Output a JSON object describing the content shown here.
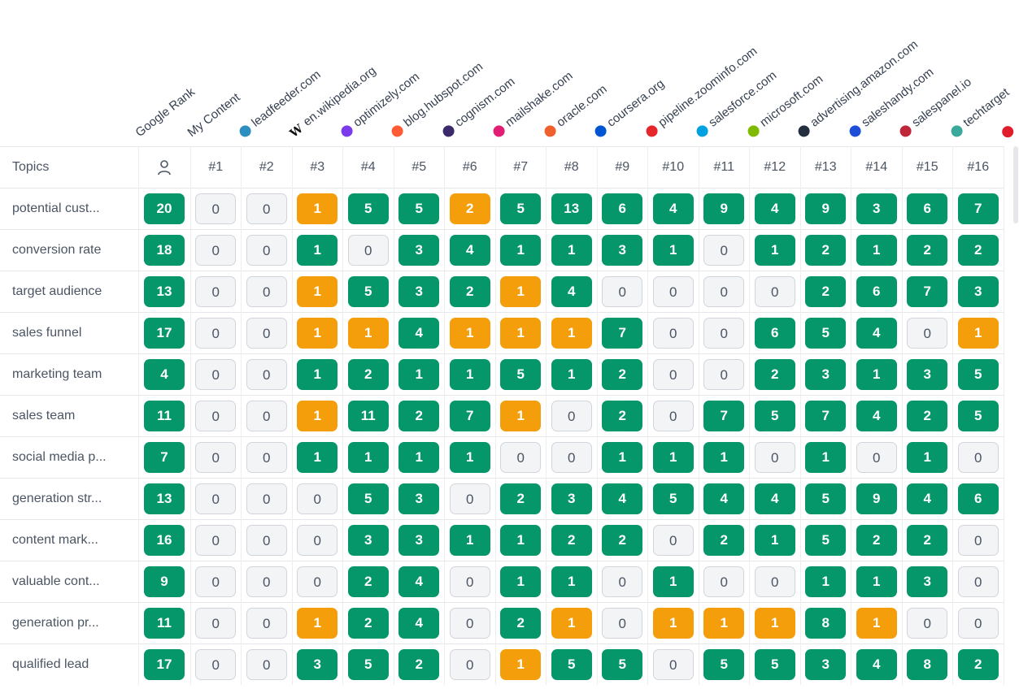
{
  "header": {
    "columns": [
      {
        "label": "Google Rank",
        "icon": ""
      },
      {
        "label": "My Content",
        "icon": ""
      },
      {
        "label": "leadfeeder.com",
        "icon": "leadfeeder-icon",
        "color": "#2d8fbf"
      },
      {
        "label": "en.wikipedia.org",
        "icon": "wikipedia-icon",
        "text": "W"
      },
      {
        "label": "optimizely.com",
        "icon": "optimizely-icon",
        "color": "#7c3aed"
      },
      {
        "label": "blog.hubspot.com",
        "icon": "hubspot-icon",
        "color": "#ff5c35"
      },
      {
        "label": "cognism.com",
        "icon": "cognism-icon",
        "color": "#3b2a6b"
      },
      {
        "label": "mailshake.com",
        "icon": "mailshake-icon",
        "color": "#e11d74"
      },
      {
        "label": "oracle.com",
        "icon": "oracle-icon",
        "color": "#f0602c"
      },
      {
        "label": "coursera.org",
        "icon": "coursera-icon",
        "color": "#0056d2"
      },
      {
        "label": "pipeline.zoominfo.com",
        "icon": "zoominfo-icon",
        "color": "#e5262c"
      },
      {
        "label": "salesforce.com",
        "icon": "salesforce-icon",
        "color": "#00a1e0"
      },
      {
        "label": "microsoft.com",
        "icon": "microsoft-icon",
        "color": "#7fba00"
      },
      {
        "label": "advertising.amazon.com",
        "icon": "amazon-icon",
        "color": "#232f3e"
      },
      {
        "label": "saleshandy.com",
        "icon": "saleshandy-icon",
        "color": "#1d4ed8"
      },
      {
        "label": "salespanel.io",
        "icon": "salespanel-icon",
        "color": "#c0263a"
      },
      {
        "label": "techtarget",
        "icon": "techtarget-icon",
        "color": "#3aa89a"
      },
      {
        "label": "",
        "icon": "site16-icon",
        "color": "#e11d2c"
      }
    ]
  },
  "table": {
    "topics_label": "Topics",
    "ranks": [
      "#1",
      "#2",
      "#3",
      "#4",
      "#5",
      "#6",
      "#7",
      "#8",
      "#9",
      "#10",
      "#11",
      "#12",
      "#13",
      "#14",
      "#15",
      "#16"
    ],
    "rows": [
      {
        "topic": "potential cust...",
        "cells": [
          {
            "v": "20",
            "c": "green"
          },
          {
            "v": "0",
            "c": "zero"
          },
          {
            "v": "0",
            "c": "zero"
          },
          {
            "v": "1",
            "c": "orange"
          },
          {
            "v": "5",
            "c": "green"
          },
          {
            "v": "5",
            "c": "green"
          },
          {
            "v": "2",
            "c": "orange"
          },
          {
            "v": "5",
            "c": "green"
          },
          {
            "v": "13",
            "c": "green"
          },
          {
            "v": "6",
            "c": "green"
          },
          {
            "v": "4",
            "c": "green"
          },
          {
            "v": "9",
            "c": "green"
          },
          {
            "v": "4",
            "c": "green"
          },
          {
            "v": "9",
            "c": "green"
          },
          {
            "v": "3",
            "c": "green"
          },
          {
            "v": "6",
            "c": "green"
          },
          {
            "v": "7",
            "c": "green"
          }
        ]
      },
      {
        "topic": "conversion rate",
        "cells": [
          {
            "v": "18",
            "c": "green"
          },
          {
            "v": "0",
            "c": "zero"
          },
          {
            "v": "0",
            "c": "zero"
          },
          {
            "v": "1",
            "c": "green"
          },
          {
            "v": "0",
            "c": "zero"
          },
          {
            "v": "3",
            "c": "green"
          },
          {
            "v": "4",
            "c": "green"
          },
          {
            "v": "1",
            "c": "green"
          },
          {
            "v": "1",
            "c": "green"
          },
          {
            "v": "3",
            "c": "green"
          },
          {
            "v": "1",
            "c": "green"
          },
          {
            "v": "0",
            "c": "zero"
          },
          {
            "v": "1",
            "c": "green"
          },
          {
            "v": "2",
            "c": "green"
          },
          {
            "v": "1",
            "c": "green"
          },
          {
            "v": "2",
            "c": "green"
          },
          {
            "v": "2",
            "c": "green"
          }
        ]
      },
      {
        "topic": "target audience",
        "cells": [
          {
            "v": "13",
            "c": "green"
          },
          {
            "v": "0",
            "c": "zero"
          },
          {
            "v": "0",
            "c": "zero"
          },
          {
            "v": "1",
            "c": "orange"
          },
          {
            "v": "5",
            "c": "green"
          },
          {
            "v": "3",
            "c": "green"
          },
          {
            "v": "2",
            "c": "green"
          },
          {
            "v": "1",
            "c": "orange"
          },
          {
            "v": "4",
            "c": "green"
          },
          {
            "v": "0",
            "c": "zero"
          },
          {
            "v": "0",
            "c": "zero"
          },
          {
            "v": "0",
            "c": "zero"
          },
          {
            "v": "0",
            "c": "zero"
          },
          {
            "v": "2",
            "c": "green"
          },
          {
            "v": "6",
            "c": "green"
          },
          {
            "v": "7",
            "c": "green"
          },
          {
            "v": "3",
            "c": "green"
          }
        ]
      },
      {
        "topic": "sales funnel",
        "cells": [
          {
            "v": "17",
            "c": "green"
          },
          {
            "v": "0",
            "c": "zero"
          },
          {
            "v": "0",
            "c": "zero"
          },
          {
            "v": "1",
            "c": "orange"
          },
          {
            "v": "1",
            "c": "orange"
          },
          {
            "v": "4",
            "c": "green"
          },
          {
            "v": "1",
            "c": "orange"
          },
          {
            "v": "1",
            "c": "orange"
          },
          {
            "v": "1",
            "c": "orange"
          },
          {
            "v": "7",
            "c": "green"
          },
          {
            "v": "0",
            "c": "zero"
          },
          {
            "v": "0",
            "c": "zero"
          },
          {
            "v": "6",
            "c": "green"
          },
          {
            "v": "5",
            "c": "green"
          },
          {
            "v": "4",
            "c": "green"
          },
          {
            "v": "0",
            "c": "zero"
          },
          {
            "v": "1",
            "c": "orange"
          }
        ]
      },
      {
        "topic": "marketing team",
        "cells": [
          {
            "v": "4",
            "c": "green"
          },
          {
            "v": "0",
            "c": "zero"
          },
          {
            "v": "0",
            "c": "zero"
          },
          {
            "v": "1",
            "c": "green"
          },
          {
            "v": "2",
            "c": "green"
          },
          {
            "v": "1",
            "c": "green"
          },
          {
            "v": "1",
            "c": "green"
          },
          {
            "v": "5",
            "c": "green"
          },
          {
            "v": "1",
            "c": "green"
          },
          {
            "v": "2",
            "c": "green"
          },
          {
            "v": "0",
            "c": "zero"
          },
          {
            "v": "0",
            "c": "zero"
          },
          {
            "v": "2",
            "c": "green"
          },
          {
            "v": "3",
            "c": "green"
          },
          {
            "v": "1",
            "c": "green"
          },
          {
            "v": "3",
            "c": "green"
          },
          {
            "v": "5",
            "c": "green"
          }
        ]
      },
      {
        "topic": "sales team",
        "cells": [
          {
            "v": "11",
            "c": "green"
          },
          {
            "v": "0",
            "c": "zero"
          },
          {
            "v": "0",
            "c": "zero"
          },
          {
            "v": "1",
            "c": "orange"
          },
          {
            "v": "11",
            "c": "green"
          },
          {
            "v": "2",
            "c": "green"
          },
          {
            "v": "7",
            "c": "green"
          },
          {
            "v": "1",
            "c": "orange"
          },
          {
            "v": "0",
            "c": "zero"
          },
          {
            "v": "2",
            "c": "green"
          },
          {
            "v": "0",
            "c": "zero"
          },
          {
            "v": "7",
            "c": "green"
          },
          {
            "v": "5",
            "c": "green"
          },
          {
            "v": "7",
            "c": "green"
          },
          {
            "v": "4",
            "c": "green"
          },
          {
            "v": "2",
            "c": "green"
          },
          {
            "v": "5",
            "c": "green"
          }
        ]
      },
      {
        "topic": "social media p...",
        "cells": [
          {
            "v": "7",
            "c": "green"
          },
          {
            "v": "0",
            "c": "zero"
          },
          {
            "v": "0",
            "c": "zero"
          },
          {
            "v": "1",
            "c": "green"
          },
          {
            "v": "1",
            "c": "green"
          },
          {
            "v": "1",
            "c": "green"
          },
          {
            "v": "1",
            "c": "green"
          },
          {
            "v": "0",
            "c": "zero"
          },
          {
            "v": "0",
            "c": "zero"
          },
          {
            "v": "1",
            "c": "green"
          },
          {
            "v": "1",
            "c": "green"
          },
          {
            "v": "1",
            "c": "green"
          },
          {
            "v": "0",
            "c": "zero"
          },
          {
            "v": "1",
            "c": "green"
          },
          {
            "v": "0",
            "c": "zero"
          },
          {
            "v": "1",
            "c": "green"
          },
          {
            "v": "0",
            "c": "zero"
          }
        ]
      },
      {
        "topic": "generation str...",
        "cells": [
          {
            "v": "13",
            "c": "green"
          },
          {
            "v": "0",
            "c": "zero"
          },
          {
            "v": "0",
            "c": "zero"
          },
          {
            "v": "0",
            "c": "zero"
          },
          {
            "v": "5",
            "c": "green"
          },
          {
            "v": "3",
            "c": "green"
          },
          {
            "v": "0",
            "c": "zero"
          },
          {
            "v": "2",
            "c": "green"
          },
          {
            "v": "3",
            "c": "green"
          },
          {
            "v": "4",
            "c": "green"
          },
          {
            "v": "5",
            "c": "green"
          },
          {
            "v": "4",
            "c": "green"
          },
          {
            "v": "4",
            "c": "green"
          },
          {
            "v": "5",
            "c": "green"
          },
          {
            "v": "9",
            "c": "green"
          },
          {
            "v": "4",
            "c": "green"
          },
          {
            "v": "6",
            "c": "green"
          }
        ]
      },
      {
        "topic": "content mark...",
        "cells": [
          {
            "v": "16",
            "c": "green"
          },
          {
            "v": "0",
            "c": "zero"
          },
          {
            "v": "0",
            "c": "zero"
          },
          {
            "v": "0",
            "c": "zero"
          },
          {
            "v": "3",
            "c": "green"
          },
          {
            "v": "3",
            "c": "green"
          },
          {
            "v": "1",
            "c": "green"
          },
          {
            "v": "1",
            "c": "green"
          },
          {
            "v": "2",
            "c": "green"
          },
          {
            "v": "2",
            "c": "green"
          },
          {
            "v": "0",
            "c": "zero"
          },
          {
            "v": "2",
            "c": "green"
          },
          {
            "v": "1",
            "c": "green"
          },
          {
            "v": "5",
            "c": "green"
          },
          {
            "v": "2",
            "c": "green"
          },
          {
            "v": "2",
            "c": "green"
          },
          {
            "v": "0",
            "c": "zero"
          }
        ]
      },
      {
        "topic": "valuable cont...",
        "cells": [
          {
            "v": "9",
            "c": "green"
          },
          {
            "v": "0",
            "c": "zero"
          },
          {
            "v": "0",
            "c": "zero"
          },
          {
            "v": "0",
            "c": "zero"
          },
          {
            "v": "2",
            "c": "green"
          },
          {
            "v": "4",
            "c": "green"
          },
          {
            "v": "0",
            "c": "zero"
          },
          {
            "v": "1",
            "c": "green"
          },
          {
            "v": "1",
            "c": "green"
          },
          {
            "v": "0",
            "c": "zero"
          },
          {
            "v": "1",
            "c": "green"
          },
          {
            "v": "0",
            "c": "zero"
          },
          {
            "v": "0",
            "c": "zero"
          },
          {
            "v": "1",
            "c": "green"
          },
          {
            "v": "1",
            "c": "green"
          },
          {
            "v": "3",
            "c": "green"
          },
          {
            "v": "0",
            "c": "zero"
          }
        ]
      },
      {
        "topic": "generation pr...",
        "cells": [
          {
            "v": "11",
            "c": "green"
          },
          {
            "v": "0",
            "c": "zero"
          },
          {
            "v": "0",
            "c": "zero"
          },
          {
            "v": "1",
            "c": "orange"
          },
          {
            "v": "2",
            "c": "green"
          },
          {
            "v": "4",
            "c": "green"
          },
          {
            "v": "0",
            "c": "zero"
          },
          {
            "v": "2",
            "c": "green"
          },
          {
            "v": "1",
            "c": "orange"
          },
          {
            "v": "0",
            "c": "zero"
          },
          {
            "v": "1",
            "c": "orange"
          },
          {
            "v": "1",
            "c": "orange"
          },
          {
            "v": "1",
            "c": "orange"
          },
          {
            "v": "8",
            "c": "green"
          },
          {
            "v": "1",
            "c": "orange"
          },
          {
            "v": "0",
            "c": "zero"
          },
          {
            "v": "0",
            "c": "zero"
          }
        ]
      },
      {
        "topic": "qualified lead",
        "cells": [
          {
            "v": "17",
            "c": "green"
          },
          {
            "v": "0",
            "c": "zero"
          },
          {
            "v": "0",
            "c": "zero"
          },
          {
            "v": "3",
            "c": "green"
          },
          {
            "v": "5",
            "c": "green"
          },
          {
            "v": "2",
            "c": "green"
          },
          {
            "v": "0",
            "c": "zero"
          },
          {
            "v": "1",
            "c": "orange"
          },
          {
            "v": "5",
            "c": "green"
          },
          {
            "v": "5",
            "c": "green"
          },
          {
            "v": "0",
            "c": "zero"
          },
          {
            "v": "5",
            "c": "green"
          },
          {
            "v": "5",
            "c": "green"
          },
          {
            "v": "3",
            "c": "green"
          },
          {
            "v": "4",
            "c": "green"
          },
          {
            "v": "8",
            "c": "green"
          },
          {
            "v": "2",
            "c": "green"
          }
        ]
      }
    ]
  },
  "colors": {
    "green": "#059669",
    "orange": "#f59e0b",
    "zero_bg": "#f3f4f6"
  }
}
